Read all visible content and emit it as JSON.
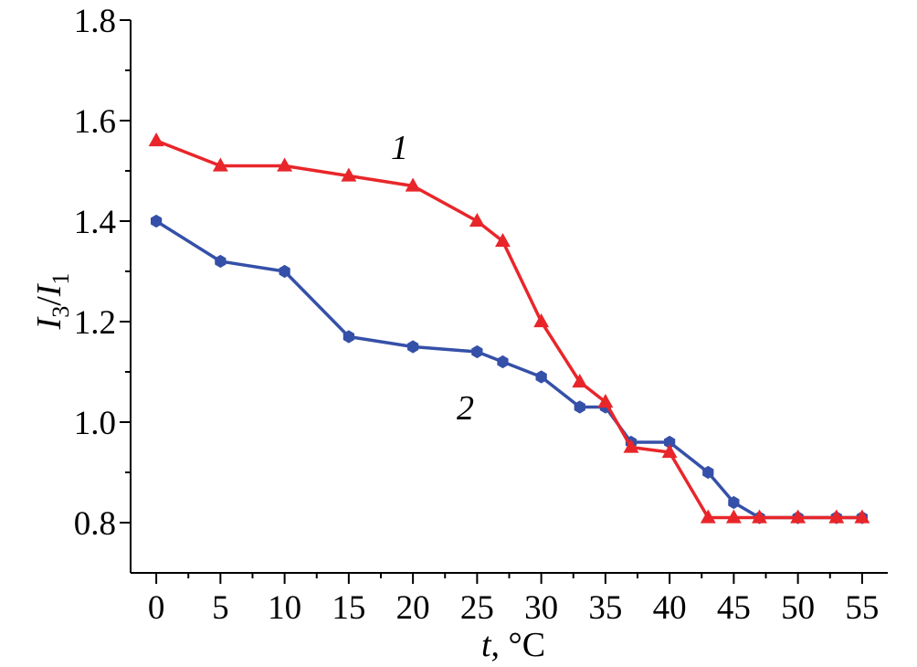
{
  "chart_data": {
    "type": "line",
    "xlabel": "t, °C",
    "ylabel": "I3/I1",
    "xlim": [
      -2,
      57
    ],
    "ylim": [
      0.7,
      1.8
    ],
    "x_ticks": [
      0,
      5,
      10,
      15,
      20,
      25,
      30,
      35,
      40,
      45,
      50,
      55
    ],
    "y_ticks": [
      0.8,
      1.0,
      1.2,
      1.4,
      1.6,
      1.8
    ],
    "grid": false,
    "series": [
      {
        "name": "1",
        "color": "#e8262a",
        "marker": "triangle",
        "x": [
          0,
          5,
          10,
          15,
          20,
          25,
          27,
          30,
          33,
          35,
          37,
          40,
          43,
          45,
          47,
          50,
          53,
          55
        ],
        "y": [
          1.56,
          1.51,
          1.51,
          1.49,
          1.47,
          1.4,
          1.36,
          1.2,
          1.08,
          1.04,
          0.95,
          0.94,
          0.81,
          0.81,
          0.81,
          0.81,
          0.81,
          0.81
        ]
      },
      {
        "name": "2",
        "color": "#3550a8",
        "marker": "hexagon",
        "x": [
          0,
          5,
          10,
          15,
          20,
          25,
          27,
          30,
          33,
          35,
          37,
          40,
          43,
          45,
          47,
          50,
          53,
          55
        ],
        "y": [
          1.4,
          1.32,
          1.3,
          1.17,
          1.15,
          1.14,
          1.12,
          1.09,
          1.03,
          1.03,
          0.96,
          0.96,
          0.9,
          0.84,
          0.81,
          0.81,
          0.81,
          0.81
        ]
      }
    ]
  }
}
